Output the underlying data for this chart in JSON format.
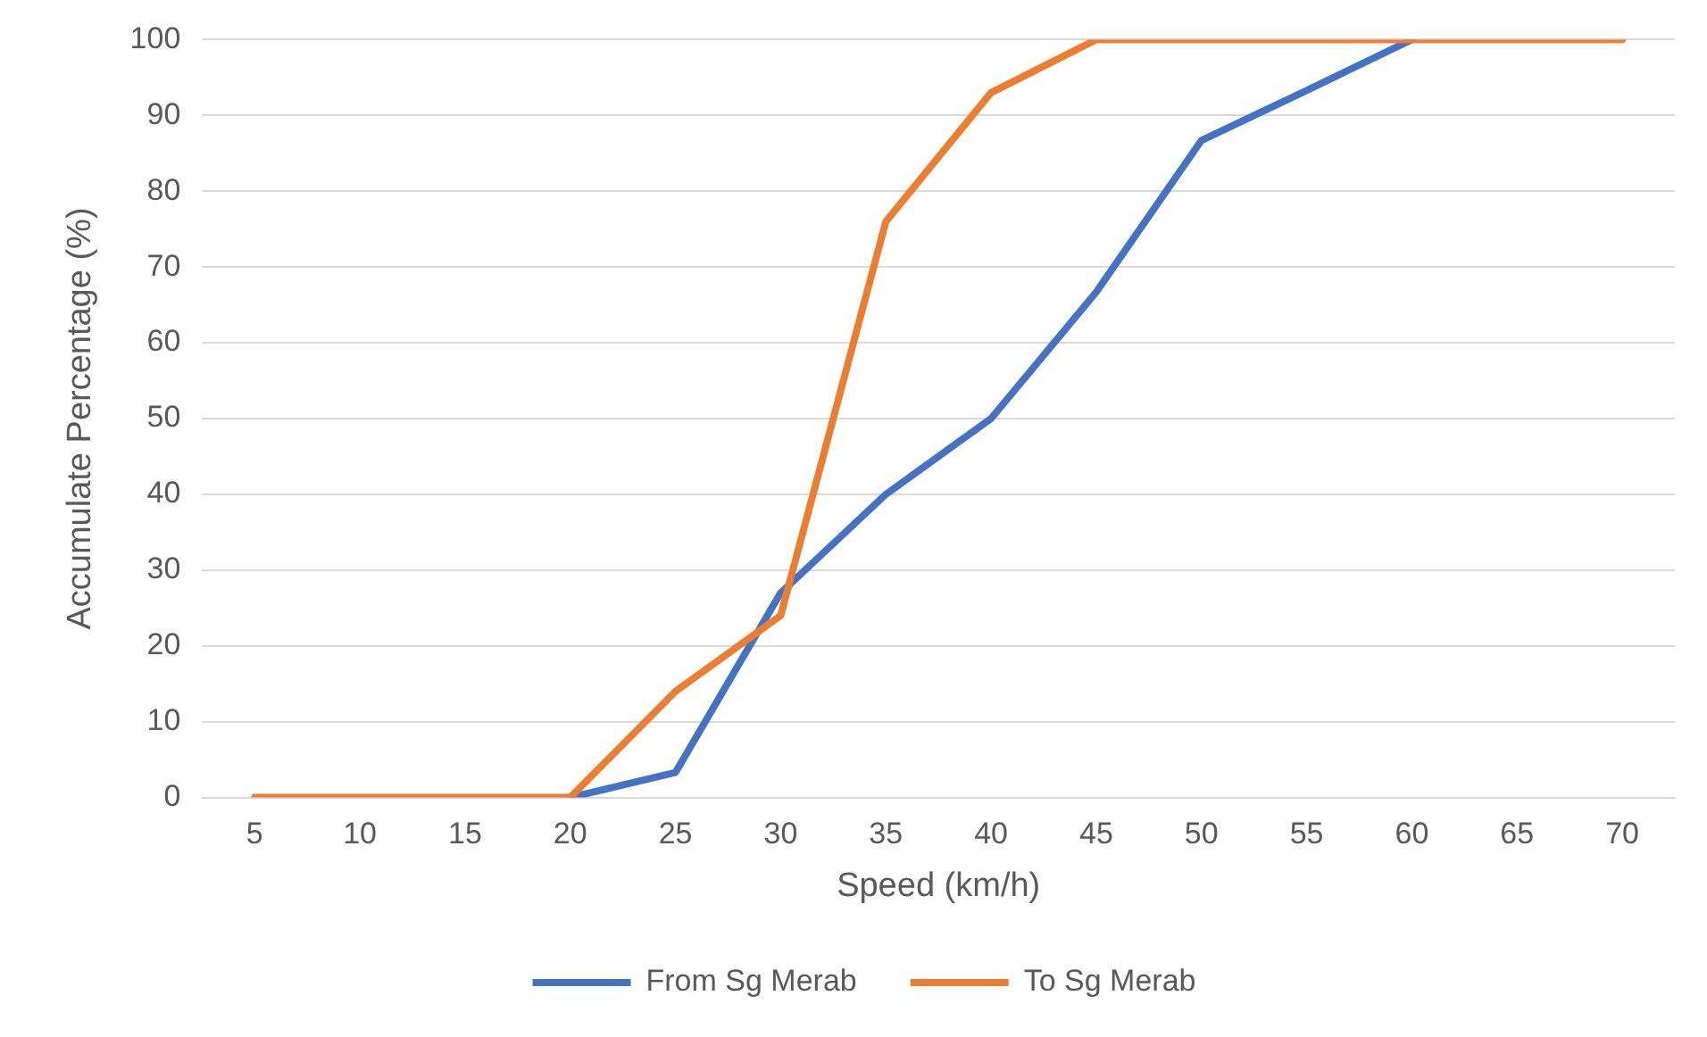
{
  "chart_data": {
    "type": "line",
    "xlabel": "Speed (km/h)",
    "ylabel": "Accumulate Percentage (%)",
    "categories": [
      "5",
      "10",
      "15",
      "20",
      "25",
      "30",
      "35",
      "40",
      "45",
      "50",
      "55",
      "60",
      "65",
      "70"
    ],
    "series": [
      {
        "name": "From Sg Merab",
        "color": "#4472c4",
        "values": [
          null,
          null,
          null,
          0,
          3.3,
          27,
          40,
          50,
          66.7,
          86.7,
          93.3,
          100,
          null,
          null
        ]
      },
      {
        "name": "To Sg Merab",
        "color": "#ed7d31",
        "values": [
          0,
          0,
          0,
          0,
          14,
          24,
          76,
          93,
          100,
          100,
          100,
          100,
          100,
          100
        ]
      }
    ],
    "ylim": [
      0,
      100
    ],
    "yticks": [
      0,
      10,
      20,
      30,
      40,
      50,
      60,
      70,
      80,
      90,
      100
    ],
    "grid": "y",
    "legend": "bottom",
    "marker": "none",
    "line_style": "solid"
  }
}
